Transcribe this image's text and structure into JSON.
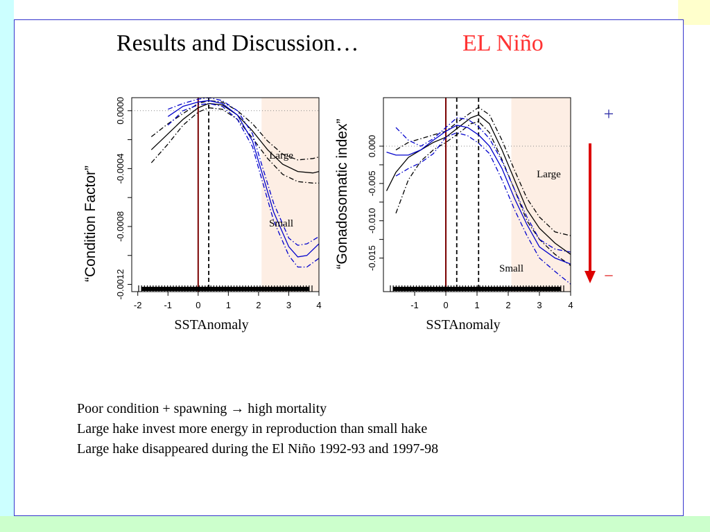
{
  "slide": {
    "title": "Results and Discussion…",
    "subtitle": "EL Niño",
    "plus_sign": "+",
    "minus_sign": "–",
    "colors": {
      "accent_red": "#ff3333",
      "arrow_red": "#dd0000",
      "plus_blue": "#3333aa"
    }
  },
  "bullets": [
    "Poor condition + spawning → high mortality",
    "Large hake invest more energy in reproduction than small hake",
    "Large hake disappeared during the El Niño 1992-93 and 1997-98"
  ],
  "chart_data": [
    {
      "type": "line",
      "xlabel": "SSTAnomaly",
      "ylabel": "“Condition Factor”",
      "xlim": [
        -2.2,
        4
      ],
      "ylim": [
        -0.00125,
        9e-05
      ],
      "xticks": [
        "-2",
        "-1",
        "0",
        "1",
        "2",
        "3",
        "4"
      ],
      "yticks": [
        "0.0000",
        "-0.0004",
        "-0.0008",
        "-0.0012"
      ],
      "vline_solid_x": 0,
      "vline_dashed_x": [
        0.35
      ],
      "hline_dotted_y": 0,
      "shaded_x_range": [
        2.1,
        4
      ],
      "annotations": [
        {
          "text": "Large",
          "x": 2.75,
          "y": -0.00033
        },
        {
          "text": "Small",
          "x": 2.75,
          "y": -0.0008
        }
      ],
      "series": [
        {
          "color": "#000000",
          "dash": "solid",
          "x": [
            -1.55,
            -1.0,
            -0.5,
            0.0,
            0.35,
            0.8,
            1.3,
            1.8,
            2.3,
            2.8,
            3.3,
            3.8,
            4.0
          ],
          "y": [
            -0.00027,
            -0.00016,
            -6e-05,
            2e-05,
            5e-05,
            4e-05,
            -3e-05,
            -0.00014,
            -0.00027,
            -0.00037,
            -0.00042,
            -0.00043,
            -0.00042
          ]
        },
        {
          "color": "#000000",
          "dash": "dashdot",
          "x": [
            -1.55,
            -1.0,
            -0.5,
            0.0,
            0.35,
            0.8,
            1.3,
            1.8,
            2.3,
            2.8,
            3.3,
            3.8,
            4.0
          ],
          "y": [
            -0.00018,
            -9e-05,
            -2e-05,
            5e-05,
            7e-05,
            6e-05,
            0.0,
            -9e-05,
            -0.00021,
            -0.0003,
            -0.00034,
            -0.00033,
            -0.00032
          ]
        },
        {
          "color": "#000000",
          "dash": "dashdot",
          "x": [
            -1.55,
            -1.0,
            -0.5,
            0.0,
            0.35,
            0.8,
            1.3,
            1.8,
            2.3,
            2.8,
            3.3,
            3.8,
            4.0
          ],
          "y": [
            -0.00036,
            -0.00023,
            -0.0001,
            -1e-05,
            2e-05,
            1e-05,
            -6e-05,
            -0.00019,
            -0.00033,
            -0.00044,
            -0.00049,
            -0.0005,
            -0.0005
          ]
        },
        {
          "color": "#0000cc",
          "dash": "solid",
          "x": [
            -1.0,
            -0.5,
            0.0,
            0.35,
            0.8,
            1.3,
            1.8,
            2.1,
            2.5,
            3.0,
            3.3,
            3.6,
            4.0
          ],
          "y": [
            -4e-05,
            3e-05,
            6e-05,
            7e-05,
            5e-05,
            -3e-05,
            -0.00021,
            -0.00042,
            -0.0007,
            -0.00094,
            -0.00101,
            -0.001,
            -0.00092
          ]
        },
        {
          "color": "#0000cc",
          "dash": "dashdot",
          "x": [
            -1.0,
            -0.5,
            0.0,
            0.35,
            0.8,
            1.3,
            1.8,
            2.1,
            2.5,
            3.0,
            3.3,
            3.6,
            4.0
          ],
          "y": [
            1e-05,
            5e-05,
            8e-05,
            9e-05,
            7e-05,
            0.0,
            -0.00016,
            -0.00037,
            -0.00064,
            -0.00088,
            -0.00093,
            -0.00092,
            -0.00087
          ]
        },
        {
          "color": "#0000cc",
          "dash": "dashdot",
          "x": [
            -1.0,
            -0.5,
            0.0,
            0.35,
            0.8,
            1.3,
            1.8,
            2.1,
            2.5,
            3.0,
            3.3,
            3.6,
            4.0
          ],
          "y": [
            -0.0001,
            0.0,
            4e-05,
            5e-05,
            3e-05,
            -6e-05,
            -0.00025,
            -0.00047,
            -0.00076,
            -0.001,
            -0.00108,
            -0.00108,
            -0.00102
          ]
        }
      ]
    },
    {
      "type": "line",
      "xlabel": "SSTAnomaly",
      "ylabel": "“Gonadosomatic index”",
      "xlim": [
        -2,
        4
      ],
      "ylim": [
        -0.0195,
        0.0065
      ],
      "xticks": [
        "-1",
        "0",
        "1",
        "2",
        "3",
        "4"
      ],
      "yticks": [
        "0.000",
        "-0.005",
        "-0.010",
        "-0.015"
      ],
      "vline_solid_x": 0,
      "vline_dashed_x": [
        0.35,
        1.05
      ],
      "hline_dotted_y": 0,
      "shaded_x_range": [
        2.1,
        4
      ],
      "annotations": [
        {
          "text": "Large",
          "x": 3.3,
          "y": -0.0042
        },
        {
          "text": "Small",
          "x": 2.1,
          "y": -0.0168
        }
      ],
      "series": [
        {
          "color": "#000000",
          "dash": "solid",
          "x": [
            -1.9,
            -1.6,
            -1.2,
            -0.8,
            -0.4,
            0.0,
            0.4,
            0.8,
            1.05,
            1.4,
            1.8,
            2.2,
            2.6,
            3.0,
            3.5,
            4.0
          ],
          "y": [
            -0.006,
            -0.0035,
            -0.0015,
            -0.0005,
            0.0005,
            0.0012,
            0.0025,
            0.0038,
            0.0042,
            0.003,
            -0.0005,
            -0.0045,
            -0.0085,
            -0.011,
            -0.013,
            -0.0145
          ]
        },
        {
          "color": "#000000",
          "dash": "dashdot",
          "x": [
            -1.6,
            -1.2,
            -0.8,
            -0.4,
            0.0,
            0.4,
            0.8,
            1.05,
            1.4,
            1.8,
            2.2,
            2.6,
            3.0,
            3.5,
            4.0
          ],
          "y": [
            -0.0005,
            0.0005,
            0.001,
            0.0015,
            0.002,
            0.0033,
            0.0045,
            0.0052,
            0.0042,
            0.0008,
            -0.0032,
            -0.007,
            -0.0095,
            -0.0115,
            -0.012
          ]
        },
        {
          "color": "#000000",
          "dash": "dashdot",
          "x": [
            -1.6,
            -1.2,
            -0.8,
            -0.4,
            0.0,
            0.4,
            0.8,
            1.05,
            1.4,
            1.8,
            2.2,
            2.6,
            3.0,
            3.5,
            4.0
          ],
          "y": [
            -0.009,
            -0.0045,
            -0.002,
            -0.0005,
            0.0005,
            0.0017,
            0.003,
            0.0033,
            0.0018,
            -0.0018,
            -0.0058,
            -0.01,
            -0.0125,
            -0.0145,
            -0.016
          ]
        },
        {
          "color": "#0000cc",
          "dash": "solid",
          "x": [
            -1.9,
            -1.6,
            -1.2,
            -0.8,
            -0.4,
            0.0,
            0.35,
            0.7,
            1.05,
            1.4,
            1.8,
            2.2,
            2.6,
            3.0,
            3.5,
            4.0
          ],
          "y": [
            -0.0008,
            -0.0012,
            -0.0012,
            -0.0005,
            0.0008,
            0.002,
            0.0028,
            0.0025,
            0.0015,
            0.0,
            -0.003,
            -0.007,
            -0.0105,
            -0.0135,
            -0.015,
            -0.0158
          ]
        },
        {
          "color": "#0000cc",
          "dash": "dashdot",
          "x": [
            -1.6,
            -1.2,
            -0.8,
            -0.4,
            0.0,
            0.35,
            0.7,
            1.05,
            1.4,
            1.8,
            2.2,
            2.6,
            3.0,
            3.5,
            4.0
          ],
          "y": [
            0.0025,
            0.0008,
            0.0,
            0.001,
            0.0025,
            0.0038,
            0.0036,
            0.0026,
            0.001,
            -0.002,
            -0.0058,
            -0.0095,
            -0.0125,
            -0.0138,
            -0.0142
          ]
        },
        {
          "color": "#0000cc",
          "dash": "dashdot",
          "x": [
            -1.6,
            -1.2,
            -0.8,
            -0.4,
            0.0,
            0.35,
            0.7,
            1.05,
            1.4,
            1.8,
            2.2,
            2.6,
            3.0,
            3.5,
            4.0
          ],
          "y": [
            -0.004,
            -0.003,
            -0.0022,
            -0.001,
            0.0012,
            0.0018,
            0.0014,
            0.0004,
            -0.001,
            -0.0045,
            -0.0085,
            -0.012,
            -0.015,
            -0.0168,
            -0.0185
          ]
        }
      ]
    }
  ]
}
